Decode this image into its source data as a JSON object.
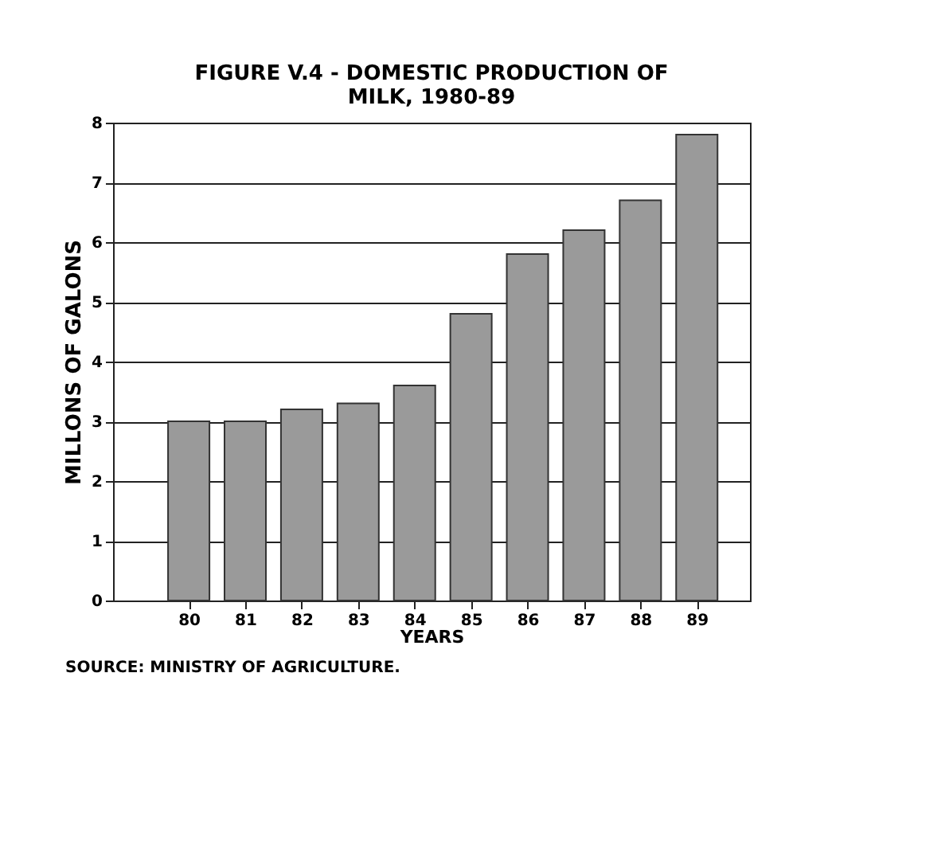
{
  "chart_data": {
    "type": "bar",
    "title": "FIGURE V.4 - DOMESTIC PRODUCTION OF\nMILK, 1980-89",
    "xlabel": "YEARS",
    "ylabel": "MILLONS OF GALONS",
    "categories": [
      "80",
      "81",
      "82",
      "83",
      "84",
      "85",
      "86",
      "87",
      "88",
      "89"
    ],
    "values": [
      3.0,
      3.0,
      3.2,
      3.3,
      3.6,
      4.8,
      5.8,
      6.2,
      6.7,
      7.8
    ],
    "color": "#9a9a9a",
    "ylim": [
      0,
      8
    ],
    "yticks": [
      0,
      1,
      2,
      3,
      4,
      5,
      6,
      7,
      8
    ],
    "grid": "y",
    "annotations": [
      "SOURCE: MINISTRY OF AGRICULTURE."
    ]
  }
}
